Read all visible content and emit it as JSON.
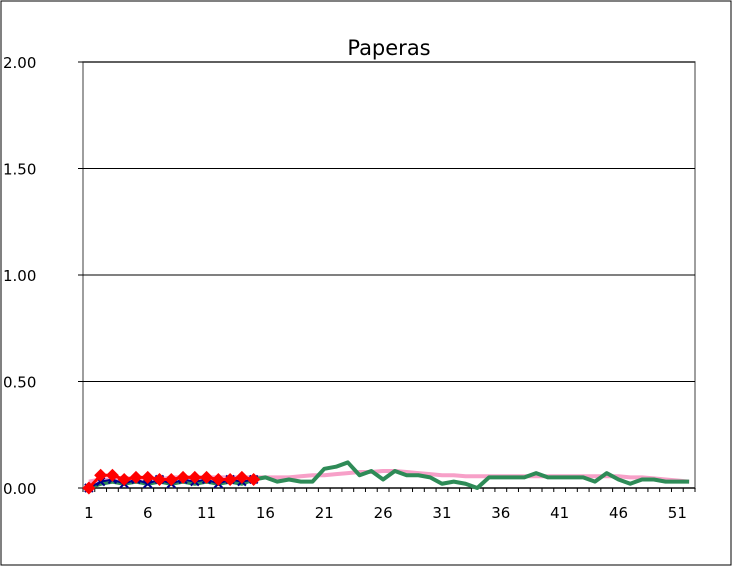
{
  "chart_data": {
    "type": "line",
    "title": "Paperas",
    "xlabel": "",
    "ylabel": "",
    "ylim": [
      0,
      2.0
    ],
    "xlim": [
      1,
      52
    ],
    "y_ticks": [
      "0.00",
      "0.50",
      "1.00",
      "1.50",
      "2.00"
    ],
    "y_tick_values": [
      0,
      0.5,
      1.0,
      1.5,
      2.0
    ],
    "x_ticks": [
      "1",
      "6",
      "11",
      "16",
      "21",
      "26",
      "31",
      "36",
      "41",
      "46",
      "51"
    ],
    "x_tick_values": [
      1,
      6,
      11,
      16,
      21,
      26,
      31,
      36,
      41,
      46,
      51
    ],
    "grid": true,
    "legend": "none",
    "series": [
      {
        "color": "#f7a0c8",
        "marker": "none",
        "width": 4,
        "x": [
          1,
          2,
          3,
          4,
          5,
          6,
          7,
          8,
          9,
          10,
          11,
          12,
          13,
          14,
          15,
          16,
          17,
          18,
          19,
          20,
          21,
          22,
          23,
          24,
          25,
          26,
          27,
          28,
          29,
          30,
          31,
          32,
          33,
          34,
          35,
          36,
          37,
          38,
          39,
          40,
          41,
          42,
          43,
          44,
          45,
          46,
          47,
          48,
          49,
          50,
          51,
          52
        ],
        "values": [
          0.03,
          0.04,
          0.04,
          0.05,
          0.04,
          0.05,
          0.04,
          0.05,
          0.05,
          0.05,
          0.05,
          0.05,
          0.05,
          0.05,
          0.05,
          0.05,
          0.05,
          0.05,
          0.055,
          0.06,
          0.06,
          0.065,
          0.07,
          0.075,
          0.075,
          0.08,
          0.08,
          0.075,
          0.07,
          0.065,
          0.06,
          0.06,
          0.055,
          0.055,
          0.055,
          0.055,
          0.055,
          0.055,
          0.055,
          0.055,
          0.055,
          0.055,
          0.055,
          0.055,
          0.055,
          0.055,
          0.05,
          0.05,
          0.045,
          0.04,
          0.035,
          0.03
        ]
      },
      {
        "color": "#2e8b57",
        "marker": "none",
        "width": 4,
        "x": [
          1,
          2,
          3,
          4,
          5,
          6,
          7,
          8,
          9,
          10,
          11,
          12,
          13,
          14,
          15,
          16,
          17,
          18,
          19,
          20,
          21,
          22,
          23,
          24,
          25,
          26,
          27,
          28,
          29,
          30,
          31,
          32,
          33,
          34,
          35,
          36,
          37,
          38,
          39,
          40,
          41,
          42,
          43,
          44,
          45,
          46,
          47,
          48,
          49,
          50,
          51,
          52
        ],
        "values": [
          0.0,
          0.02,
          0.03,
          0.02,
          0.03,
          0.02,
          0.03,
          0.02,
          0.03,
          0.02,
          0.03,
          0.02,
          0.03,
          0.02,
          0.04,
          0.05,
          0.03,
          0.04,
          0.03,
          0.03,
          0.09,
          0.1,
          0.12,
          0.06,
          0.08,
          0.04,
          0.08,
          0.06,
          0.06,
          0.05,
          0.02,
          0.03,
          0.02,
          0.0,
          0.05,
          0.05,
          0.05,
          0.05,
          0.07,
          0.05,
          0.05,
          0.05,
          0.05,
          0.03,
          0.07,
          0.04,
          0.02,
          0.04,
          0.04,
          0.03,
          0.03,
          0.03
        ]
      },
      {
        "color": "#00008b",
        "marker": "x",
        "width": 2,
        "x": [
          1,
          2,
          3,
          4,
          5,
          6,
          7,
          8,
          9,
          10,
          11,
          12,
          13,
          14,
          15
        ],
        "values": [
          0.0,
          0.03,
          0.04,
          0.02,
          0.04,
          0.02,
          0.04,
          0.02,
          0.04,
          0.03,
          0.04,
          0.02,
          0.04,
          0.03,
          0.04
        ]
      },
      {
        "color": "#ff0000",
        "marker": "diamond",
        "width": 3,
        "x": [
          1,
          2,
          3,
          4,
          5,
          6,
          7,
          8,
          9,
          10,
          11,
          12,
          13,
          14,
          15
        ],
        "values": [
          0.0,
          0.06,
          0.06,
          0.04,
          0.05,
          0.05,
          0.04,
          0.04,
          0.05,
          0.05,
          0.05,
          0.04,
          0.04,
          0.05,
          0.04
        ]
      }
    ]
  }
}
